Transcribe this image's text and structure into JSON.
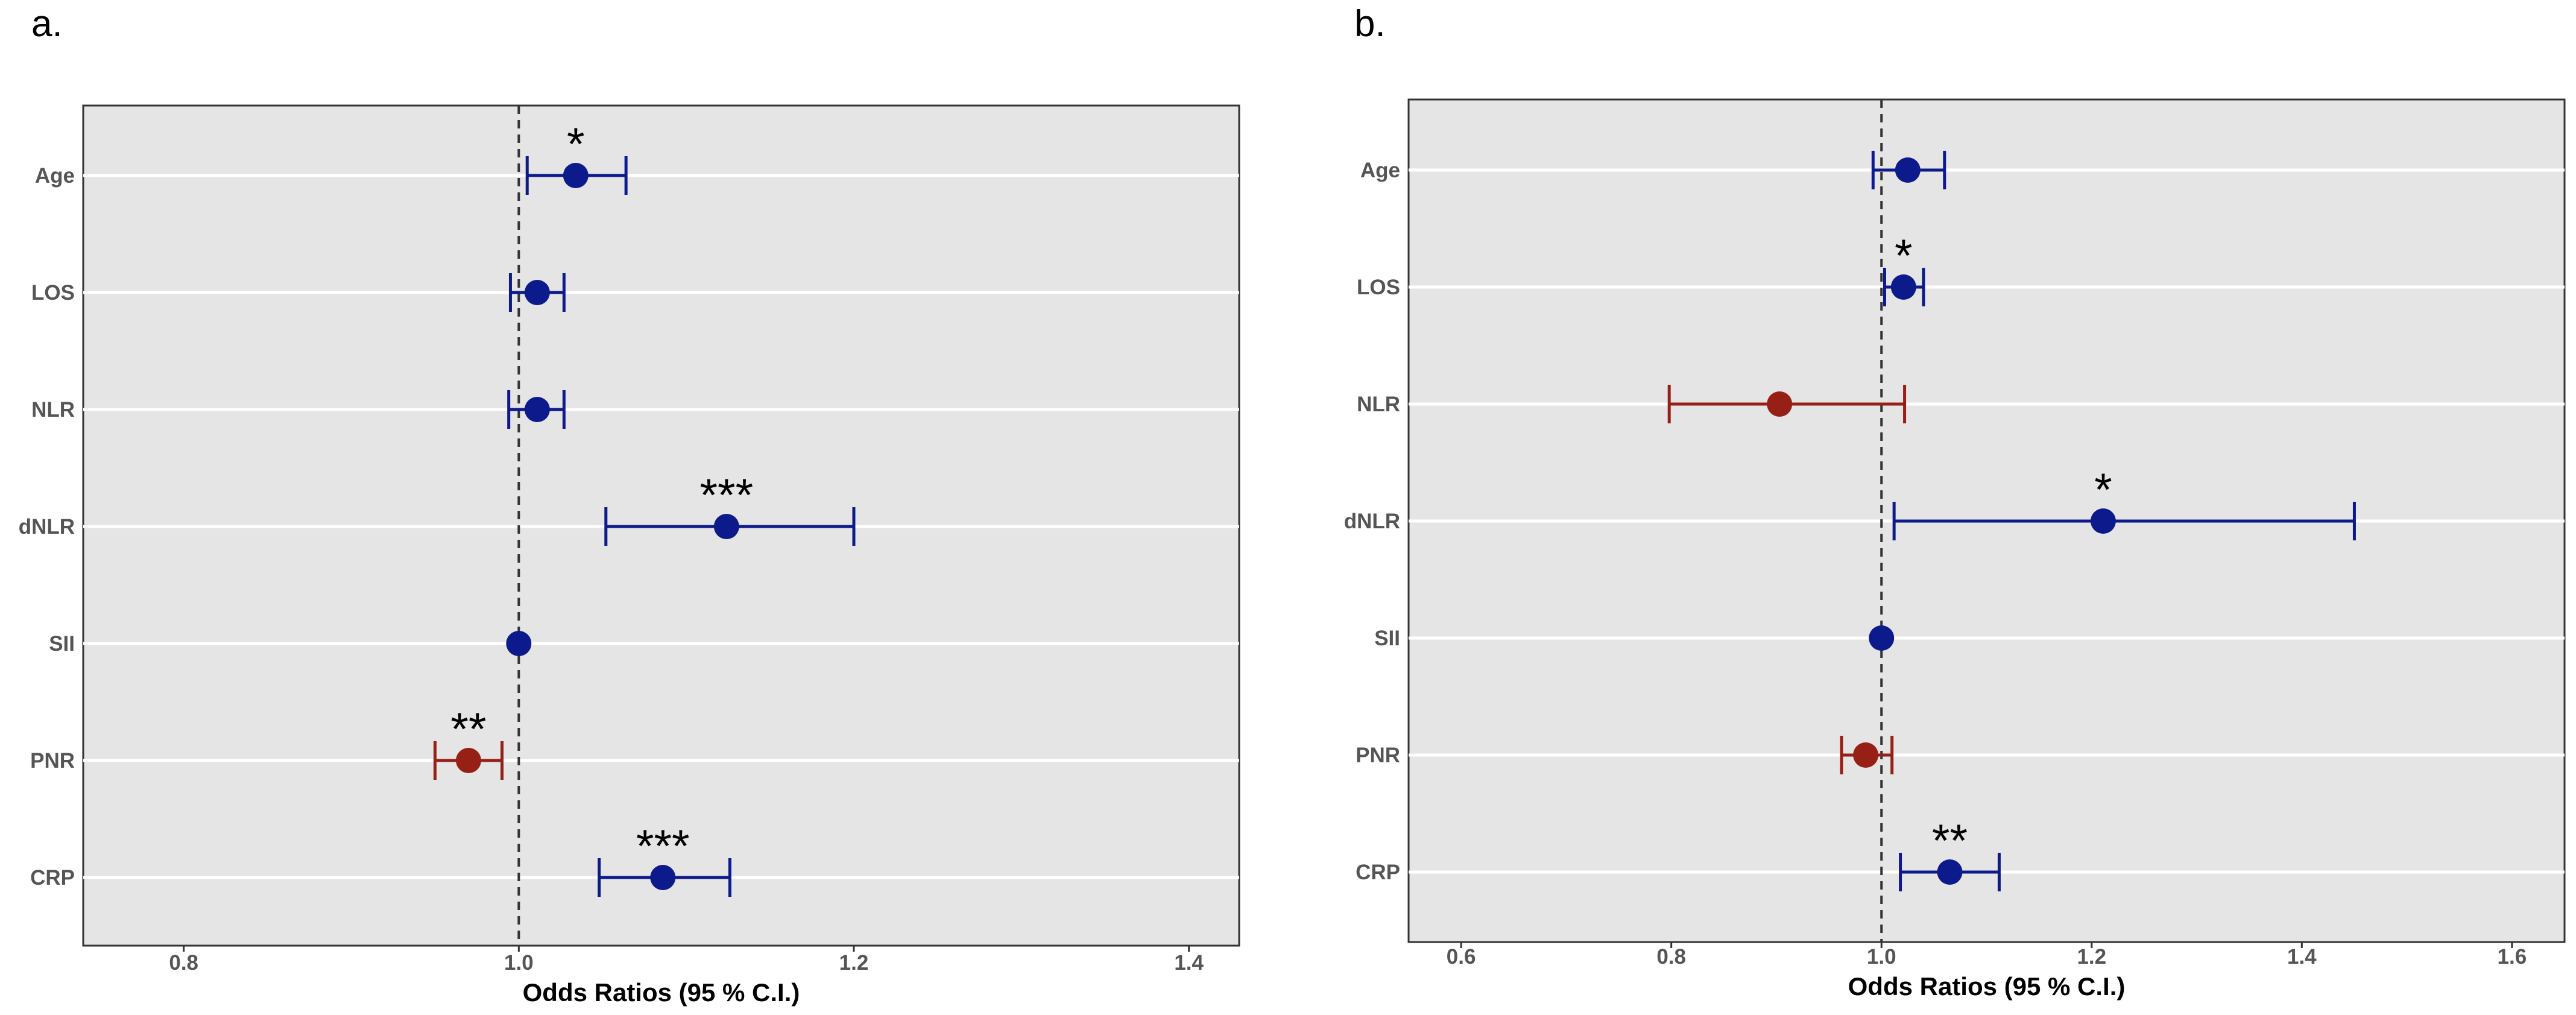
{
  "colors": {
    "positive": "#0d1a8c",
    "negative": "#962016",
    "panel_bg": "#e5e5e5",
    "grid": "#ffffff",
    "reference_line": "#333333"
  },
  "chart_data": [
    {
      "panel_label": "a.",
      "type": "scatter",
      "subtype": "forest-plot",
      "xlabel": "Odds Ratios (95 % C.I.)",
      "ylabel": "",
      "xlim": [
        0.74,
        1.43
      ],
      "xticks": [
        0.8,
        1.0,
        1.2,
        1.4
      ],
      "xtick_labels": [
        "0.8",
        "1.0",
        "1.2",
        "1.4"
      ],
      "reference_line": 1.0,
      "grid": true,
      "categories": [
        "Age",
        "LOS",
        "NLR",
        "dNLR",
        "SII",
        "PNR",
        "CRP"
      ],
      "or": [
        1.034,
        1.011,
        1.011,
        1.124,
        1.0,
        0.97,
        1.086
      ],
      "ci_low": [
        1.005,
        0.995,
        0.994,
        1.052,
        1.0,
        0.95,
        1.048
      ],
      "ci_high": [
        1.064,
        1.027,
        1.027,
        1.2,
        1.0,
        0.99,
        1.126
      ],
      "direction": [
        "positive",
        "positive",
        "positive",
        "positive",
        "positive",
        "negative",
        "positive"
      ],
      "significance": [
        "*",
        "",
        "",
        "***",
        "",
        "**",
        "***"
      ]
    },
    {
      "panel_label": "b.",
      "type": "scatter",
      "subtype": "forest-plot",
      "xlabel": "Odds Ratios (95 % C.I.)",
      "ylabel": "",
      "xlim": [
        0.55,
        1.65
      ],
      "xticks": [
        0.6,
        0.8,
        1.0,
        1.2,
        1.4,
        1.6
      ],
      "xtick_labels": [
        "0.6",
        "0.8",
        "1.0",
        "1.2",
        "1.4",
        "1.6"
      ],
      "reference_line": 1.0,
      "grid": true,
      "categories": [
        "Age",
        "LOS",
        "NLR",
        "dNLR",
        "SII",
        "PNR",
        "CRP"
      ],
      "or": [
        1.025,
        1.021,
        0.903,
        1.211,
        1.0,
        0.985,
        1.065
      ],
      "ci_low": [
        0.992,
        1.003,
        0.798,
        1.012,
        1.0,
        0.962,
        1.018
      ],
      "ci_high": [
        1.06,
        1.04,
        1.022,
        1.45,
        1.0,
        1.01,
        1.112
      ],
      "direction": [
        "positive",
        "positive",
        "negative",
        "positive",
        "positive",
        "negative",
        "positive"
      ],
      "significance": [
        "",
        "*",
        "",
        "*",
        "",
        "",
        "**"
      ]
    }
  ]
}
